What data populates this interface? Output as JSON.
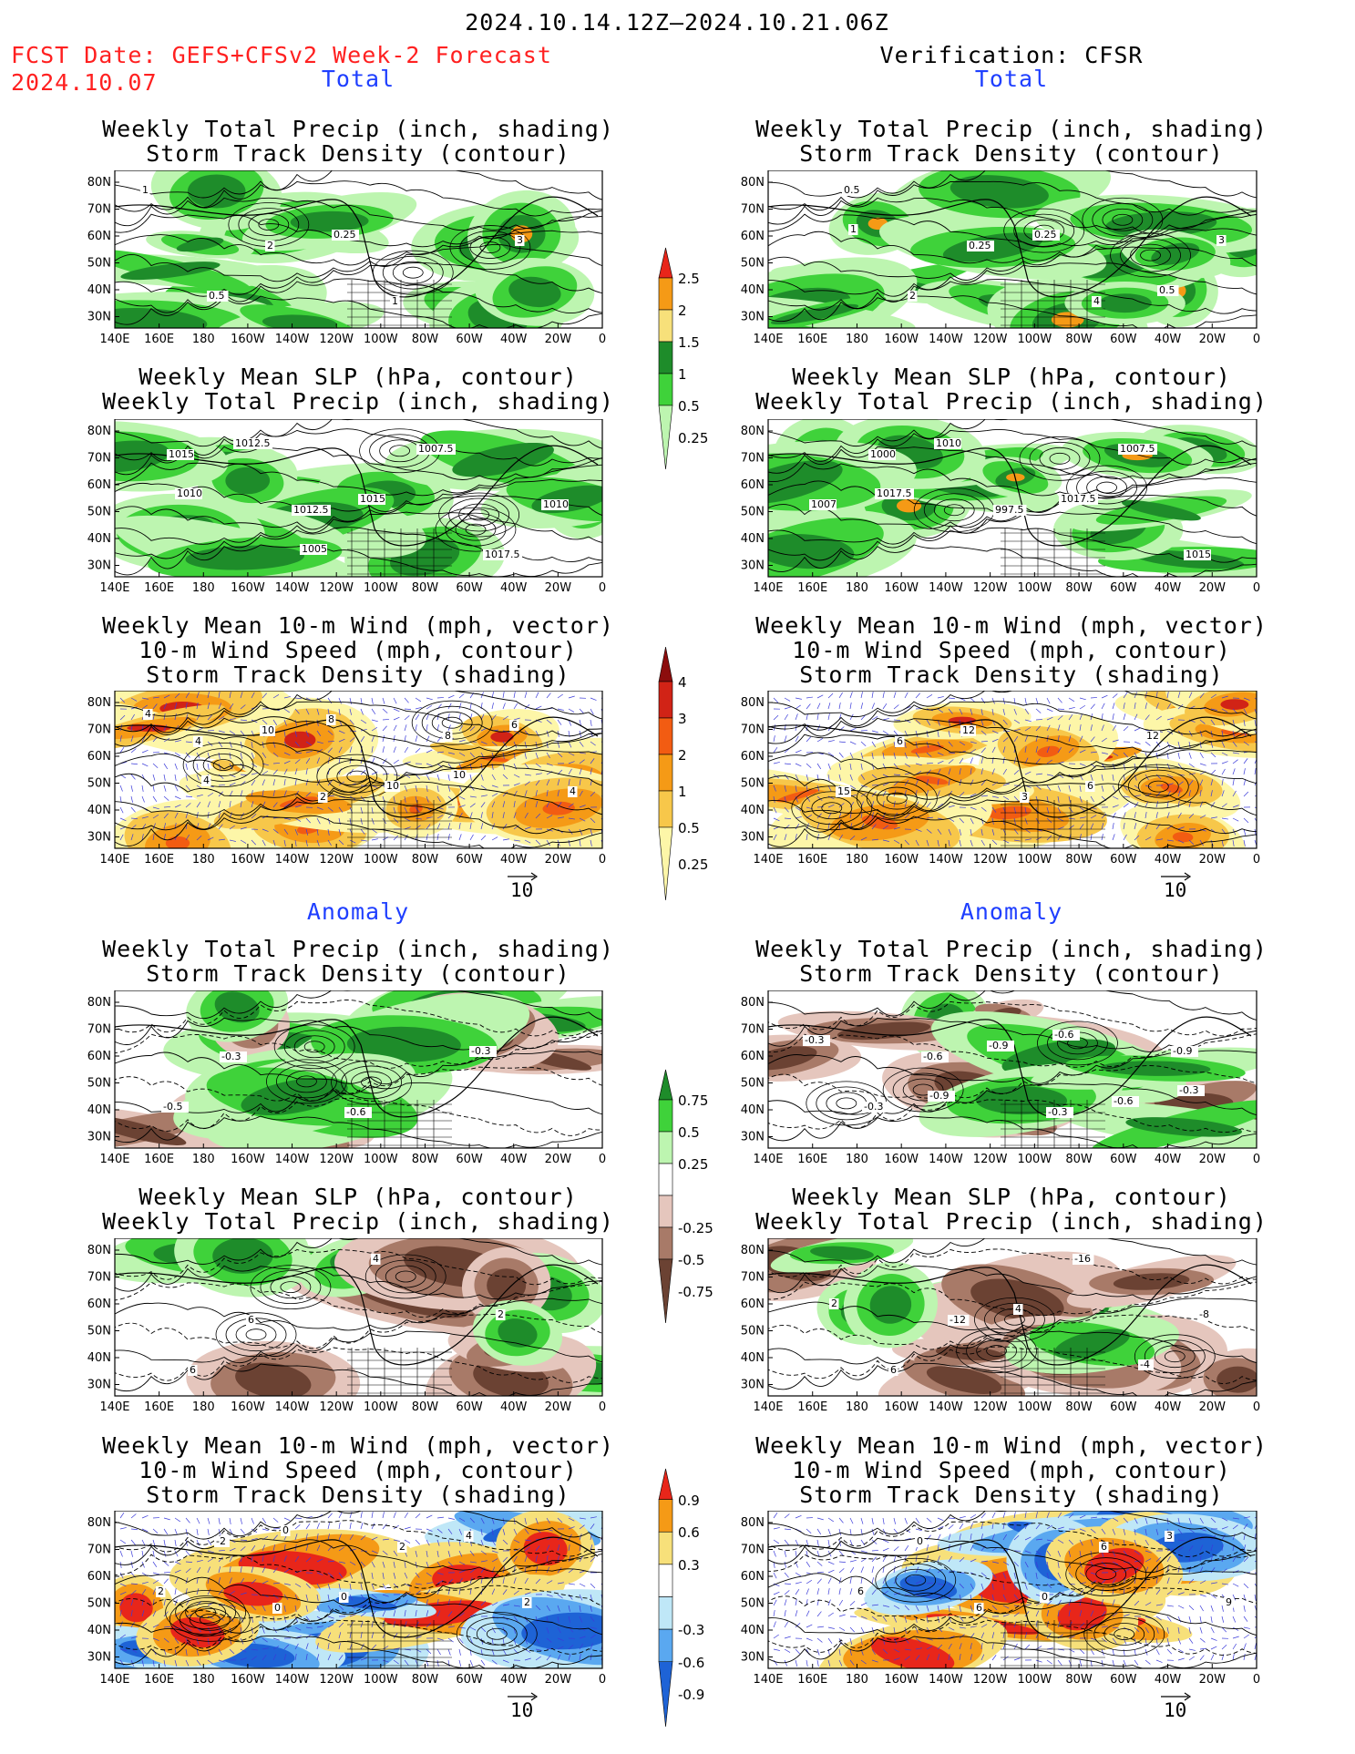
{
  "header": {
    "period": "2024.10.14.12Z–2024.10.21.06Z",
    "fcst_line1": "FCST Date: GEFS+CFSv2 Week-2 Forecast",
    "fcst_line2": "2024.10.07",
    "verif": "Verification: CFSR"
  },
  "sections": {
    "total": "Total",
    "anomaly": "Anomaly"
  },
  "titles": {
    "precip_storm": [
      "Weekly Total Precip (inch, shading)",
      "Storm Track Density (contour)"
    ],
    "slp_precip": [
      "Weekly Mean SLP (hPa, contour)",
      "Weekly Total Precip (inch, shading)"
    ],
    "wind_storm": [
      "Weekly Mean 10-m Wind (mph, vector)",
      "10-m Wind Speed (mph, contour)",
      "Storm Track Density (shading)"
    ]
  },
  "axes": {
    "lon": [
      "140E",
      "160E",
      "180",
      "160W",
      "140W",
      "120W",
      "100W",
      "80W",
      "60W",
      "40W",
      "20W",
      "0"
    ],
    "lat": [
      "80N",
      "70N",
      "60N",
      "50N",
      "40N",
      "30N"
    ]
  },
  "vector_ref": "10",
  "colorbars": {
    "precip_total": {
      "labels": [
        "2.5",
        "2",
        "1.5",
        "1",
        "0.5",
        "0.25"
      ],
      "colors": [
        "#e8261a",
        "#f59a16",
        "#f7e07a",
        "#1e8c2a",
        "#3fd23a",
        "#bdf5b0"
      ]
    },
    "storm_total": {
      "labels": [
        "4",
        "3",
        "2",
        "1",
        "0.5",
        "0.25"
      ],
      "colors": [
        "#8c0d0d",
        "#d12316",
        "#f25c12",
        "#f59a16",
        "#f7c74a",
        "#fdf6a8"
      ]
    },
    "precip_anom": {
      "labels": [
        "0.75",
        "0.5",
        "0.25",
        "-0.25",
        "-0.5",
        "-0.75"
      ],
      "colors": [
        "#1e8c2a",
        "#3fd23a",
        "#bdf5b0",
        "#ffffff",
        "#e5c6bd",
        "#a87a68",
        "#6b4233"
      ]
    },
    "storm_anom": {
      "labels": [
        "0.9",
        "0.6",
        "0.3",
        "-0.3",
        "-0.6",
        "-0.9"
      ],
      "colors": [
        "#e8261a",
        "#f59a16",
        "#f7e07a",
        "#ffffff",
        "#bfe7f7",
        "#5aa8f0",
        "#1e63d6"
      ]
    }
  },
  "contour_labels": {
    "fcst_precip_total": [
      "1",
      "2",
      "1",
      "3",
      "0.5",
      "0.25"
    ],
    "obs_precip_total": [
      "0.5",
      "0.25",
      "4",
      "3",
      "2",
      "0.25",
      "0.5",
      "1"
    ],
    "fcst_slp_total": [
      "1015",
      "1012.5",
      "1007.5",
      "1010",
      "1012.5",
      "1015",
      "1017.5",
      "1010",
      "1005"
    ],
    "obs_slp_total": [
      "1000",
      "997.5",
      "1007.5",
      "1007",
      "1010",
      "1017.5",
      "1015",
      "1017.5"
    ],
    "fcst_wind_total": [
      "4",
      "2",
      "8",
      "4",
      "10",
      "10",
      "6",
      "4",
      "8",
      "10",
      "4"
    ],
    "obs_wind_total": [
      "6",
      "3",
      "12",
      "15",
      "12",
      "6"
    ],
    "fcst_precip_anom": [
      "-0.3",
      "-0.6",
      "-0.3",
      "-0.5"
    ],
    "obs_precip_anom": [
      "-0.6",
      "-0.3",
      "-0.9",
      "-0.3",
      "-0.9",
      "-0.6",
      "-0.3",
      "-0.9",
      "-0.6",
      "-0.3"
    ],
    "fcst_slp_anom": [
      "6",
      "4",
      "2",
      "6"
    ],
    "obs_slp_anom": [
      "-12",
      "-16",
      "-8",
      "6",
      "4",
      "-4",
      "2"
    ],
    "fcst_wind_anom": [
      "0",
      "2",
      "2",
      "-2",
      "0",
      "4",
      "2",
      "0"
    ],
    "obs_wind_anom": [
      "6",
      "6",
      "9",
      "0",
      "0",
      "3",
      "6"
    ]
  }
}
